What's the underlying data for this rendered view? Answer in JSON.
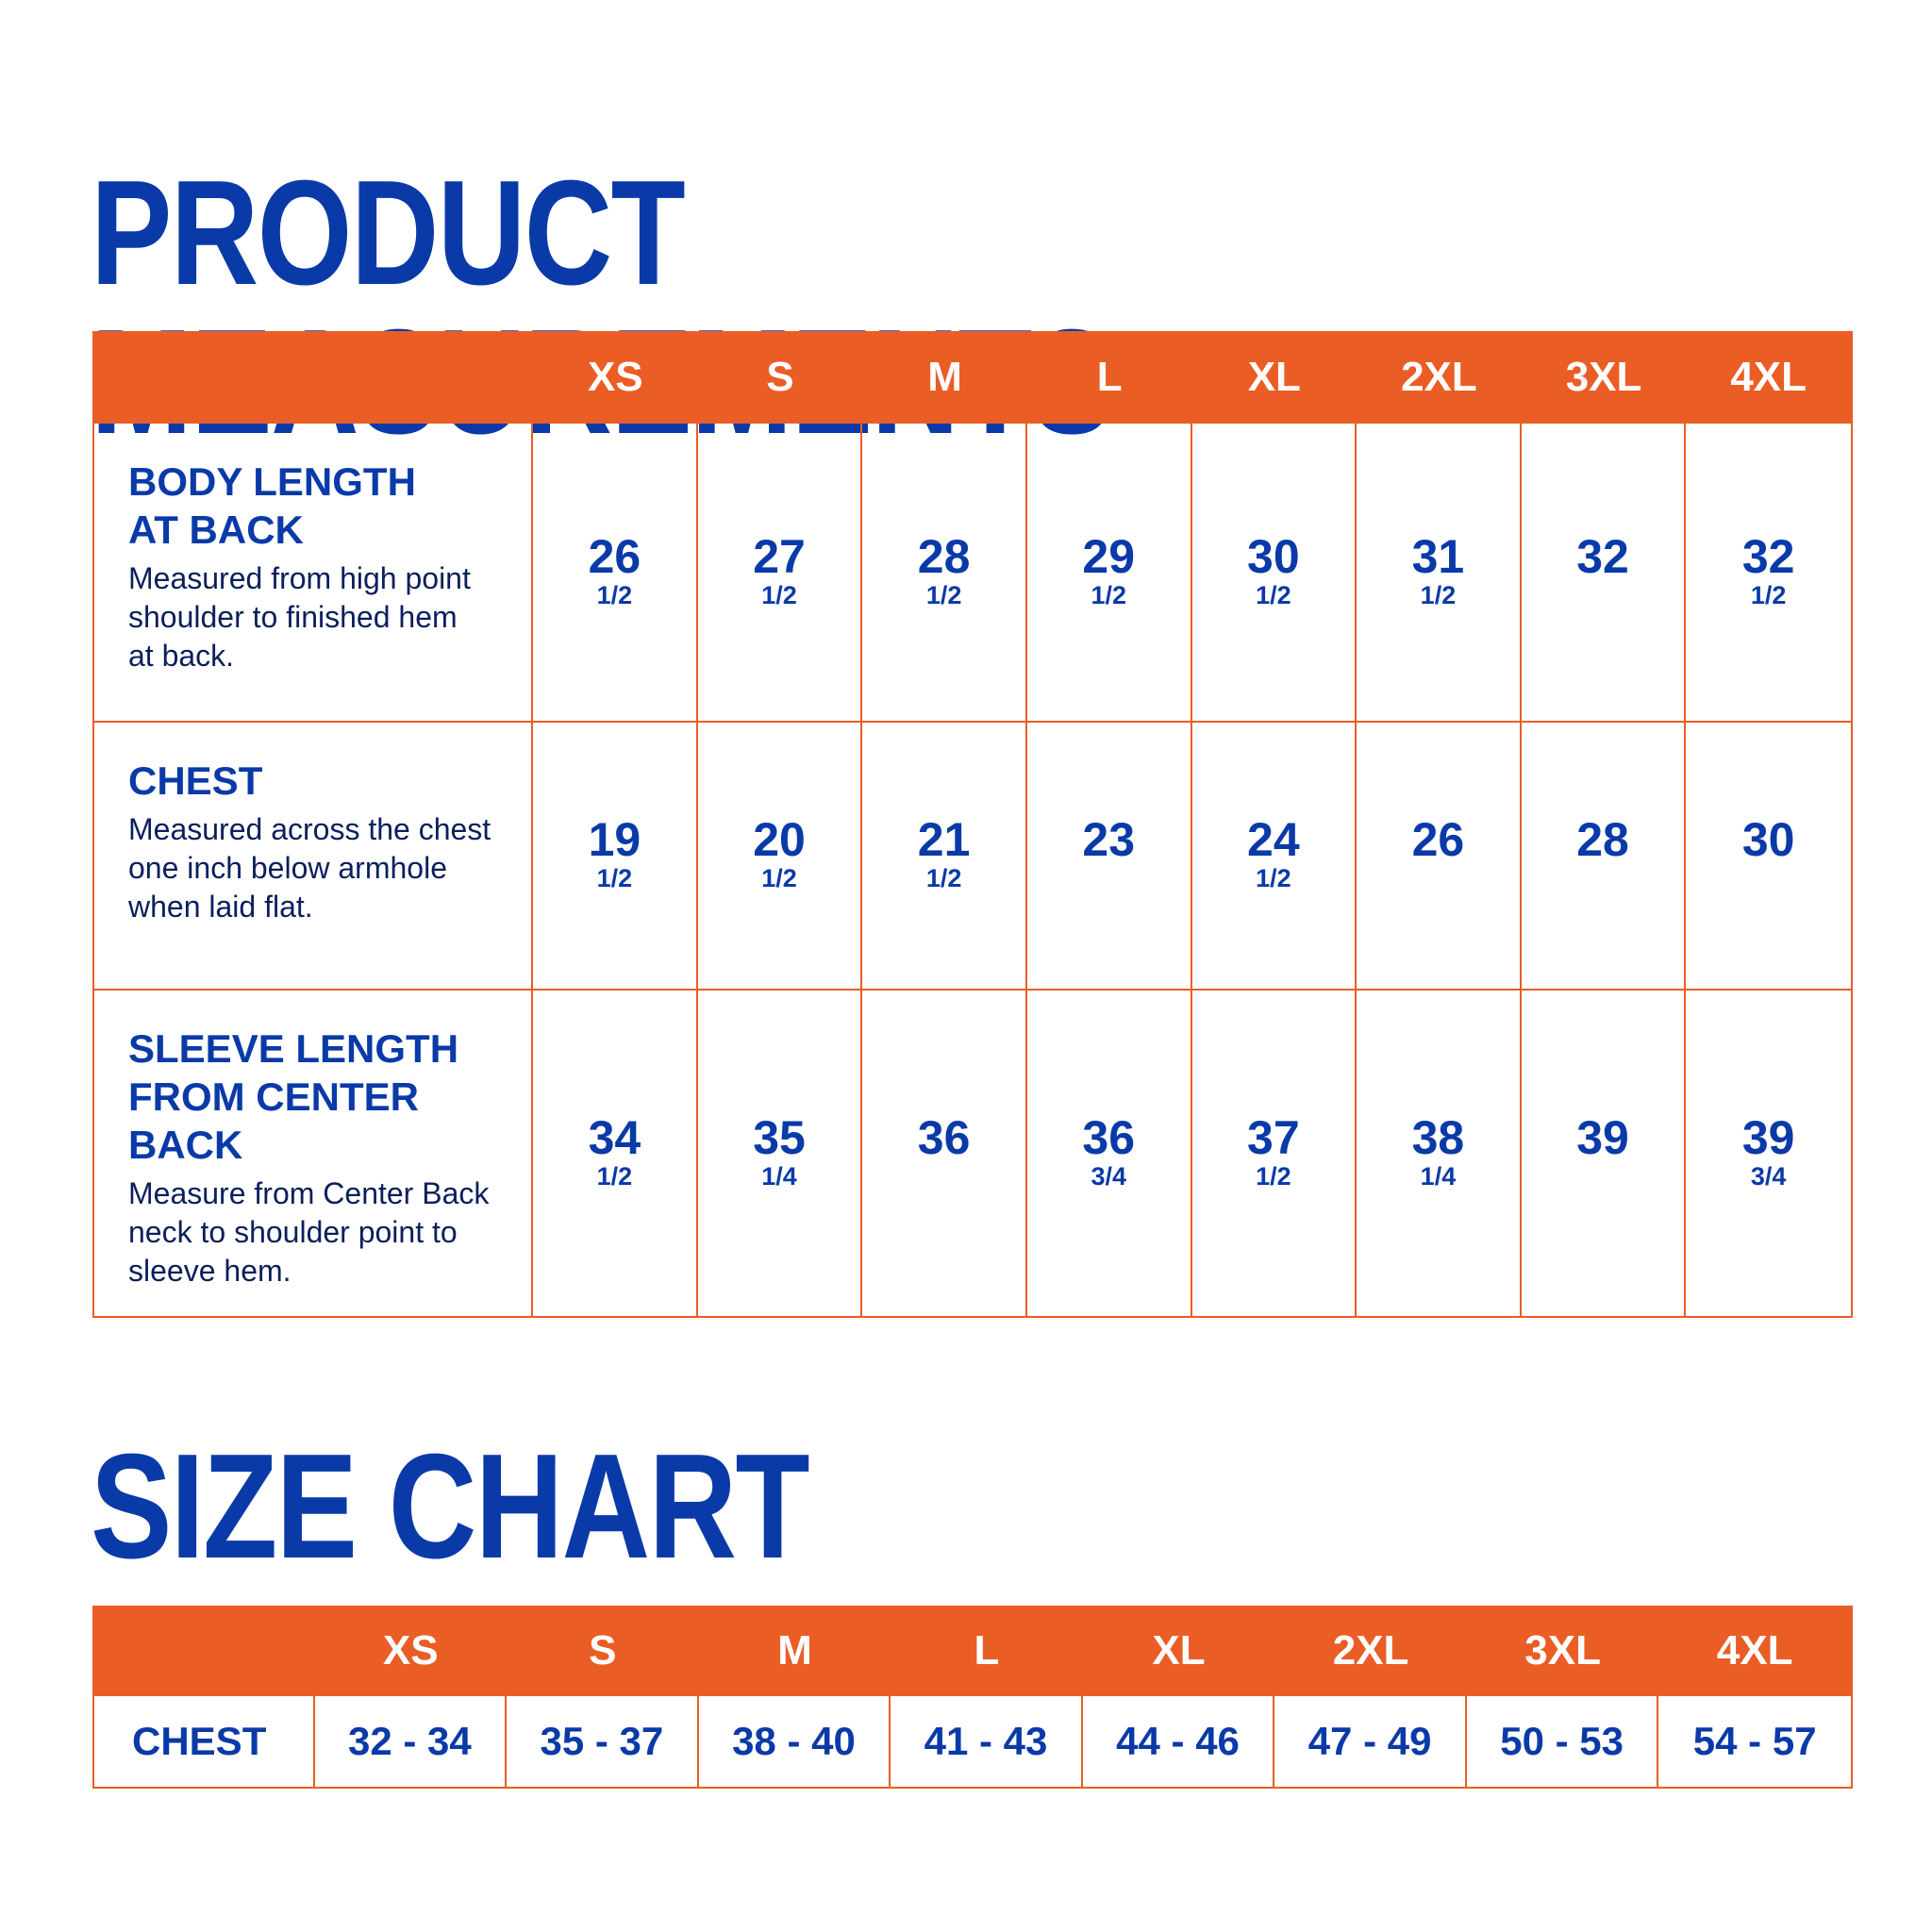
{
  "measurements": {
    "title": "PRODUCT MEASUREMENTS",
    "sizes": [
      "XS",
      "S",
      "M",
      "L",
      "XL",
      "2XL",
      "3XL",
      "4XL"
    ],
    "rows": [
      {
        "title": "BODY LENGTH\nAT BACK",
        "description": "Measured from high point\nshoulder to finished hem\nat back.",
        "values": [
          {
            "whole": "26",
            "frac": "1/2"
          },
          {
            "whole": "27",
            "frac": "1/2"
          },
          {
            "whole": "28",
            "frac": "1/2"
          },
          {
            "whole": "29",
            "frac": "1/2"
          },
          {
            "whole": "30",
            "frac": "1/2"
          },
          {
            "whole": "31",
            "frac": "1/2"
          },
          {
            "whole": "32",
            "frac": ""
          },
          {
            "whole": "32",
            "frac": "1/2"
          }
        ]
      },
      {
        "title": "CHEST",
        "description": "Measured across the chest\none inch below armhole\nwhen laid flat.",
        "values": [
          {
            "whole": "19",
            "frac": "1/2"
          },
          {
            "whole": "20",
            "frac": "1/2"
          },
          {
            "whole": "21",
            "frac": "1/2"
          },
          {
            "whole": "23",
            "frac": ""
          },
          {
            "whole": "24",
            "frac": "1/2"
          },
          {
            "whole": "26",
            "frac": ""
          },
          {
            "whole": "28",
            "frac": ""
          },
          {
            "whole": "30",
            "frac": ""
          }
        ]
      },
      {
        "title": "SLEEVE LENGTH\nFROM CENTER\nBACK",
        "description": "Measure from Center Back\nneck to shoulder point to\nsleeve hem.",
        "values": [
          {
            "whole": "34",
            "frac": "1/2"
          },
          {
            "whole": "35",
            "frac": "1/4"
          },
          {
            "whole": "36",
            "frac": ""
          },
          {
            "whole": "36",
            "frac": "3/4"
          },
          {
            "whole": "37",
            "frac": "1/2"
          },
          {
            "whole": "38",
            "frac": "1/4"
          },
          {
            "whole": "39",
            "frac": ""
          },
          {
            "whole": "39",
            "frac": "3/4"
          }
        ]
      }
    ]
  },
  "size_chart": {
    "title": "SIZE CHART",
    "sizes": [
      "XS",
      "S",
      "M",
      "L",
      "XL",
      "2XL",
      "3XL",
      "4XL"
    ],
    "row_label": "CHEST",
    "values": [
      "32 - 34",
      "35 - 37",
      "38 - 40",
      "41 - 43",
      "44 - 46",
      "47 - 49",
      "50 - 53",
      "54 - 57"
    ]
  },
  "colors": {
    "accent_orange": "#ea5d25",
    "brand_blue": "#0a3aa8",
    "text_navy": "#0b1f5c",
    "background": "#ffffff"
  }
}
